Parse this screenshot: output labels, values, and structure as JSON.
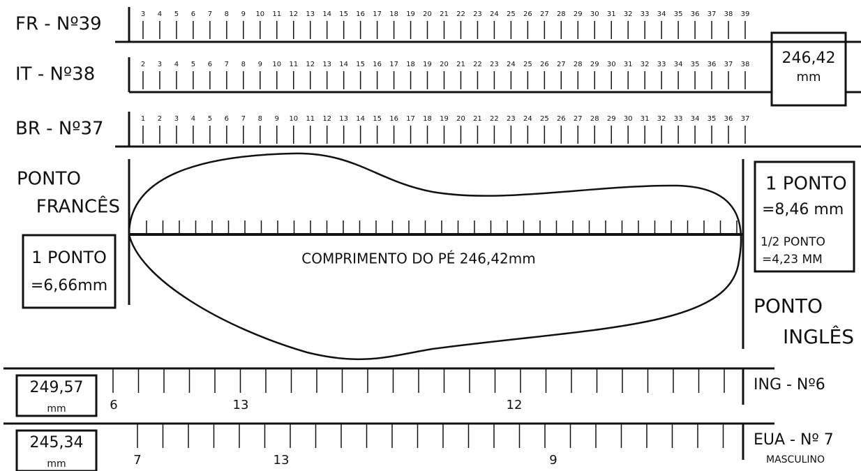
{
  "scales": [
    {
      "label": "FR - Nº39",
      "ticks": [
        3,
        4,
        5,
        6,
        7,
        8,
        9,
        10,
        11,
        12,
        13,
        14,
        15,
        16,
        17,
        18,
        19,
        20,
        21,
        22,
        23,
        24,
        25,
        26,
        27,
        28,
        29,
        30,
        31,
        32,
        33,
        34,
        35,
        36,
        37,
        38,
        39
      ]
    },
    {
      "label": "IT - Nº38",
      "ticks": [
        2,
        3,
        4,
        5,
        6,
        7,
        8,
        9,
        10,
        11,
        12,
        13,
        14,
        15,
        16,
        17,
        18,
        19,
        20,
        21,
        22,
        23,
        24,
        25,
        26,
        27,
        28,
        29,
        30,
        31,
        32,
        33,
        34,
        35,
        36,
        37,
        38
      ]
    },
    {
      "label": "BR - Nº37",
      "ticks": [
        1,
        2,
        3,
        4,
        5,
        6,
        7,
        8,
        9,
        10,
        11,
        12,
        13,
        14,
        15,
        16,
        17,
        18,
        19,
        20,
        21,
        22,
        23,
        24,
        25,
        26,
        27,
        28,
        29,
        30,
        31,
        32,
        33,
        34,
        35,
        36,
        37
      ]
    }
  ],
  "length_box": {
    "value": "246,42",
    "unit": "mm"
  },
  "left": {
    "title_lines": [
      "PONTO",
      "FRANCÊS"
    ],
    "box_lines": [
      "1 PONTO",
      "=6,66mm"
    ]
  },
  "right": {
    "title_lines": [
      "PONTO",
      "INGLÊS"
    ],
    "box_lines": [
      "1 PONTO",
      "=8,46 mm",
      "1/2 PONTO",
      "=4,23 MM"
    ]
  },
  "foot_label": "COMPRIMENTO DO PÉ 246,42mm",
  "bottom_scales": [
    {
      "label": "ING - Nº6",
      "box_value": "249,57",
      "box_unit": "mm",
      "labels": [
        "6",
        "13",
        "12"
      ]
    },
    {
      "label": "EUA - Nº 7",
      "sublabel": "MASCULINO",
      "box_value": "245,34",
      "box_unit": "mm",
      "labels": [
        "7",
        "13",
        "9"
      ]
    }
  ]
}
